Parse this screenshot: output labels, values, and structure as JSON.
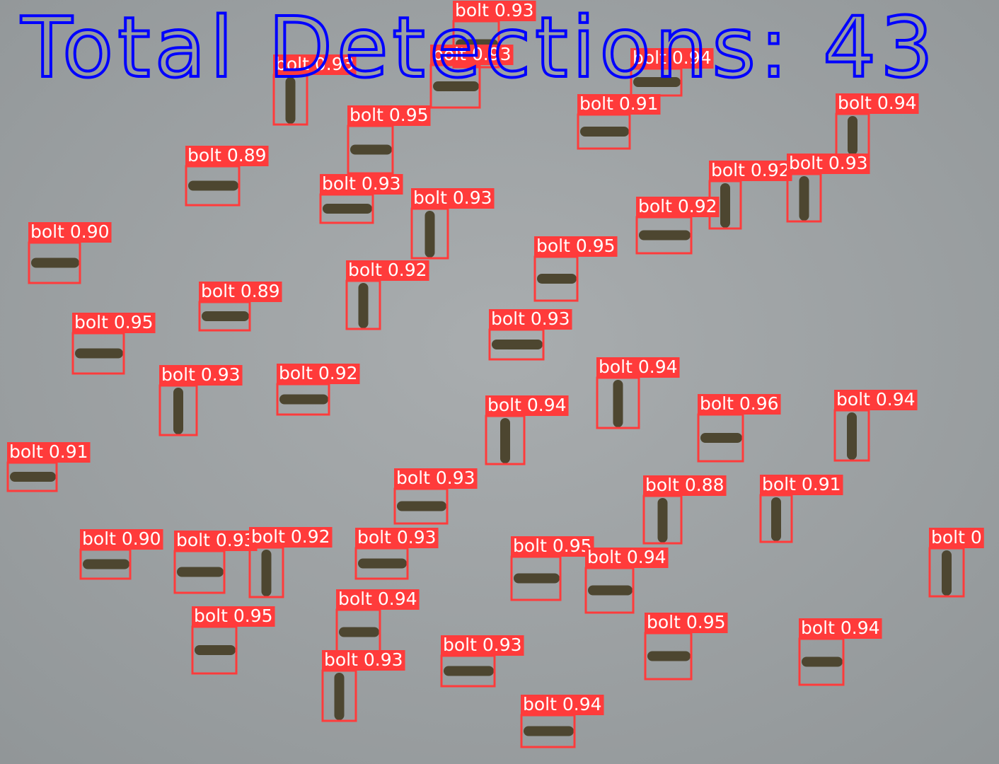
{
  "overlay_text": "Total Detections: 43",
  "detections": [
    "bolt 0.93",
    "bolt 0.93",
    "bolt 0.93",
    "bolt 0.94",
    "bolt 0.95",
    "bolt 0.91",
    "bolt 0.94",
    "bolt 0.89",
    "bolt 0.93",
    "bolt 0.93",
    "bolt 0.92",
    "bolt 0.93",
    "bolt 0.92",
    "bolt 0.90",
    "bolt 0.95",
    "bolt 0.92",
    "bolt 0.89",
    "bolt 0.95",
    "bolt 0.93",
    "bolt 0.93",
    "bolt 0.92",
    "bolt 0.94",
    "bolt 0.94",
    "bolt 0.96",
    "bolt 0.94",
    "bolt 0.91",
    "bolt 0.93",
    "bolt 0.88",
    "bolt 0.91",
    "bolt 0.90",
    "bolt 0.93",
    "bolt 0.92",
    "bolt 0.93",
    "bolt 0.95",
    "bolt 0.94",
    "bolt 0",
    "bolt 0.95",
    "bolt 0.94",
    "bolt 0.93",
    "bolt 0.93",
    "bolt 0.95",
    "bolt 0.94",
    "bolt 0.94"
  ]
}
